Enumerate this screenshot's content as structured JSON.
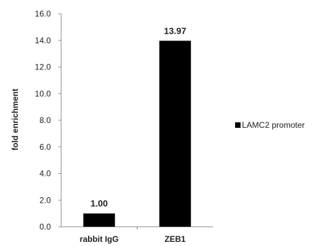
{
  "chart_data": {
    "type": "bar",
    "categories": [
      "rabbit IgG",
      "ZEB1"
    ],
    "series": [
      {
        "name": "LAMC2 promoter",
        "values": [
          1.0,
          13.97
        ],
        "color": "#000000"
      }
    ],
    "data_labels": [
      "1.00",
      "13.97"
    ],
    "xlabel": "",
    "ylabel": "fold enrichment",
    "ylim": [
      0,
      16
    ],
    "yticks": [
      "0.0",
      "2.0",
      "4.0",
      "6.0",
      "8.0",
      "10.0",
      "12.0",
      "14.0",
      "16.0"
    ],
    "grid": false,
    "legend_position": "right"
  }
}
